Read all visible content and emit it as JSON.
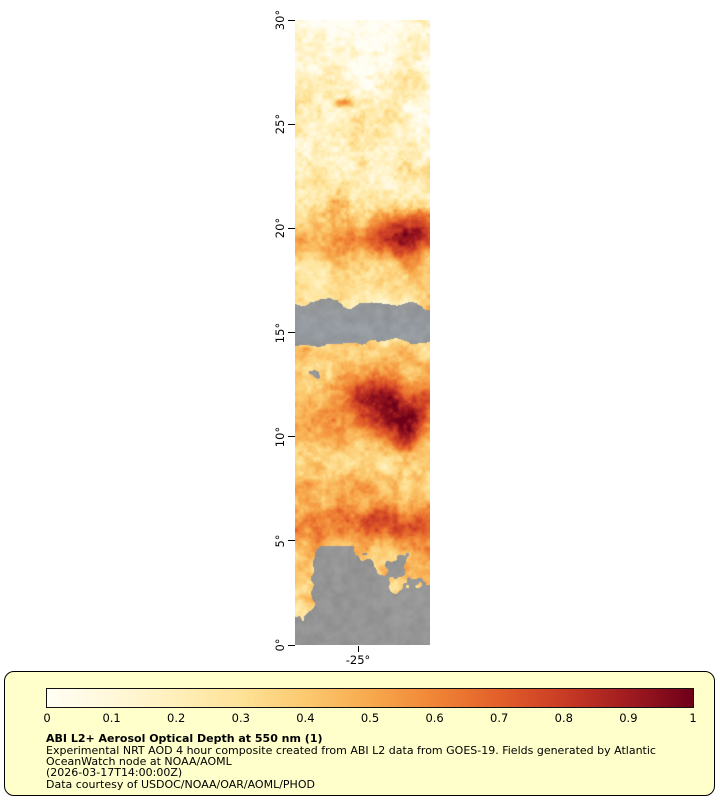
{
  "map": {
    "y_axis": {
      "labels": [
        "30°",
        "25°",
        "20°",
        "15°",
        "10°",
        "5°",
        "0°"
      ],
      "values": [
        30,
        25,
        20,
        15,
        10,
        5,
        0
      ]
    },
    "x_axis": {
      "labels": [
        "-25°"
      ]
    }
  },
  "colorbar": {
    "tick_labels": [
      "0",
      "0.1",
      "0.2",
      "0.3",
      "0.4",
      "0.5",
      "0.6",
      "0.7",
      "0.8",
      "0.9",
      "1"
    ],
    "colors": [
      "#fffef4",
      "#fff8da",
      "#ffefba",
      "#fee297",
      "#fcc96f",
      "#f8a94d",
      "#f08536",
      "#e25f2a",
      "#c93b25",
      "#a01b20",
      "#6e0018"
    ],
    "missing_data_color": "#969696",
    "panel_background": "#ffffcc"
  },
  "caption": {
    "title": "ABI L2+ Aerosol Optical Depth at 550 nm (1)",
    "description": "Experimental NRT AOD 4 hour composite created from ABI L2 data from GOES-19. Fields generated by Atlantic OceanWatch node at NOAA/AOML",
    "timestamp": "(2026-03-17T14:00:00Z)",
    "courtesy": "Data courtesy of USDOC/NOAA/OAR/AOML/PHOD"
  },
  "chart_data": {
    "type": "heatmap",
    "title": "ABI L2+ Aerosol Optical Depth at 550 nm (1)",
    "variable": "Aerosol Optical Depth at 550 nm",
    "satellite": "GOES-19",
    "lat_axis": {
      "ticks": [
        0,
        5,
        10,
        15,
        20,
        25,
        30
      ],
      "unit": "degrees",
      "range": [
        0,
        30
      ]
    },
    "lon_axis": {
      "ticks": [
        -25
      ],
      "unit": "degrees"
    },
    "color_scale": {
      "min": 0,
      "max": 1,
      "ticks": [
        0,
        0.1,
        0.2,
        0.3,
        0.4,
        0.5,
        0.6,
        0.7,
        0.8,
        0.9,
        1
      ]
    },
    "legend_position": "bottom",
    "missing_data": "gray patches indicate no retrieval (cloud/no data)"
  }
}
